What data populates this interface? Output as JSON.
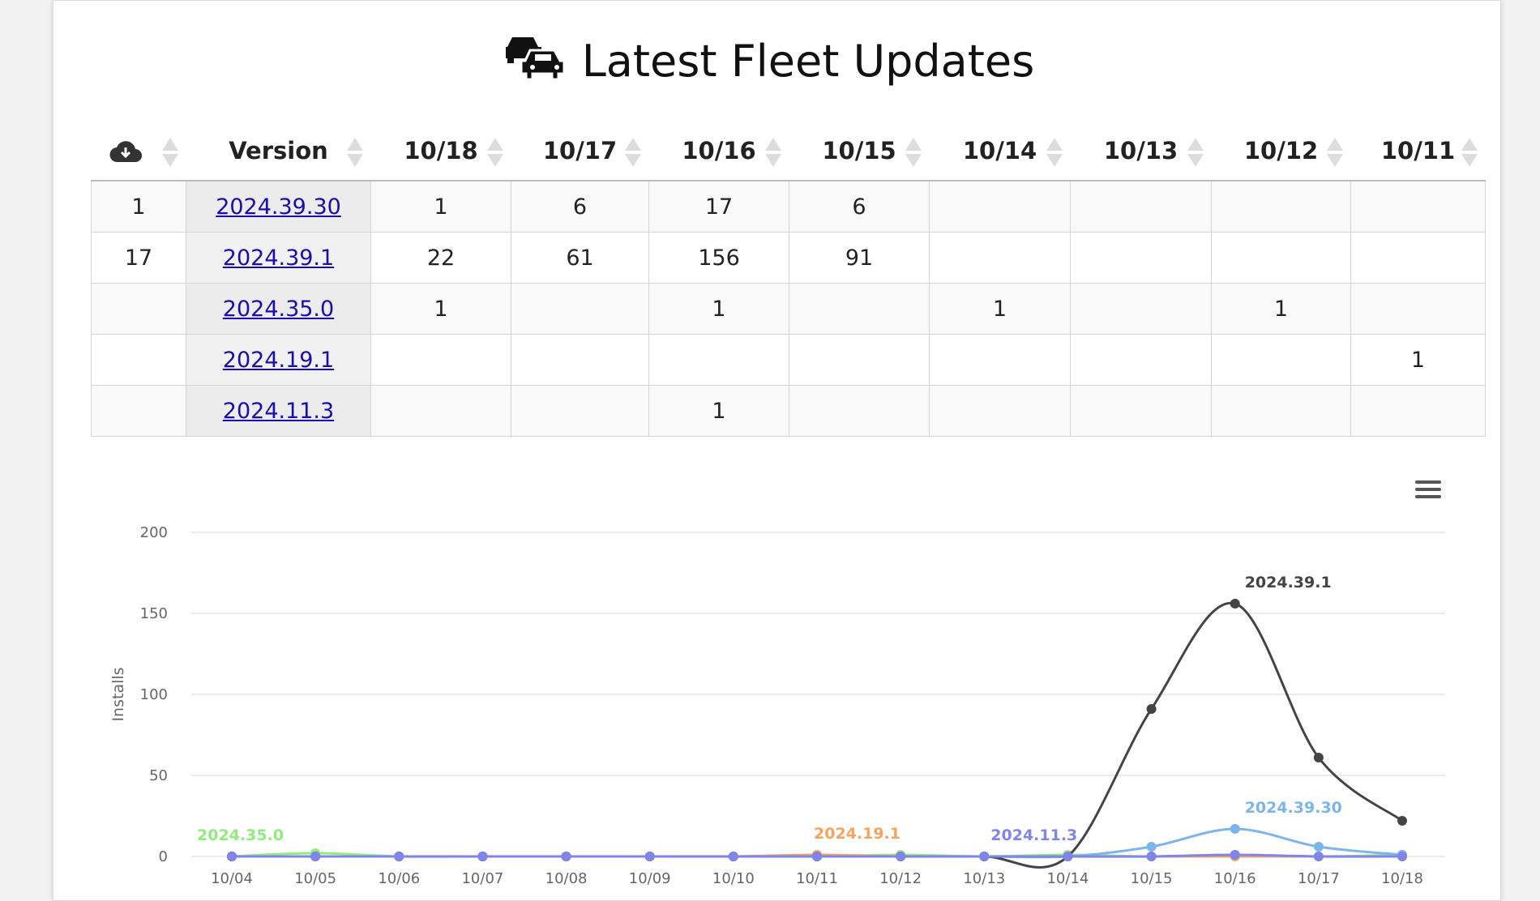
{
  "title": "Latest Fleet Updates",
  "table": {
    "headers": [
      null,
      "Version",
      "10/18",
      "10/17",
      "10/16",
      "10/15",
      "10/14",
      "10/13",
      "10/12",
      "10/11"
    ],
    "rows": [
      [
        1,
        "2024.39.30",
        1,
        6,
        17,
        6,
        null,
        null,
        null,
        null
      ],
      [
        17,
        "2024.39.1",
        22,
        61,
        156,
        91,
        null,
        null,
        null,
        null
      ],
      [
        null,
        "2024.35.0",
        1,
        null,
        1,
        null,
        1,
        null,
        1,
        null
      ],
      [
        null,
        "2024.19.1",
        null,
        null,
        null,
        null,
        null,
        null,
        null,
        1
      ],
      [
        null,
        "2024.11.3",
        null,
        null,
        1,
        null,
        null,
        null,
        null,
        null
      ]
    ]
  },
  "chart_data": {
    "type": "line",
    "y_label": "Installs",
    "categories": [
      "10/04",
      "10/05",
      "10/06",
      "10/07",
      "10/08",
      "10/09",
      "10/10",
      "10/11",
      "10/12",
      "10/13",
      "10/14",
      "10/15",
      "10/16",
      "10/17",
      "10/18"
    ],
    "ylim": [
      0,
      200
    ],
    "yticks": [
      0,
      50,
      100,
      150,
      200
    ],
    "grid": true,
    "series": [
      {
        "name": "2024.35.0",
        "color": "#90ed7d",
        "values": [
          0,
          2,
          0,
          0,
          0,
          0,
          0,
          0,
          1,
          0,
          1,
          0,
          1,
          0,
          1
        ]
      },
      {
        "name": "2024.19.1",
        "color": "#f7a35c",
        "values": [
          0,
          0,
          0,
          0,
          0,
          0,
          0,
          1,
          0,
          0,
          0,
          0,
          0,
          0,
          0
        ]
      },
      {
        "name": "2024.39.30",
        "color": "#7cb5ec",
        "values": [
          0,
          0,
          0,
          0,
          0,
          0,
          0,
          0,
          0,
          0,
          0,
          6,
          17,
          6,
          1
        ]
      },
      {
        "name": "2024.39.1",
        "color": "#434348",
        "values": [
          0,
          0,
          0,
          0,
          0,
          0,
          0,
          0,
          0,
          0,
          0,
          91,
          156,
          61,
          22
        ]
      },
      {
        "name": "2024.11.3",
        "color": "#8085e9",
        "values": [
          0,
          0,
          0,
          0,
          0,
          0,
          0,
          0,
          0,
          0,
          0,
          0,
          1,
          0,
          0
        ]
      }
    ]
  }
}
